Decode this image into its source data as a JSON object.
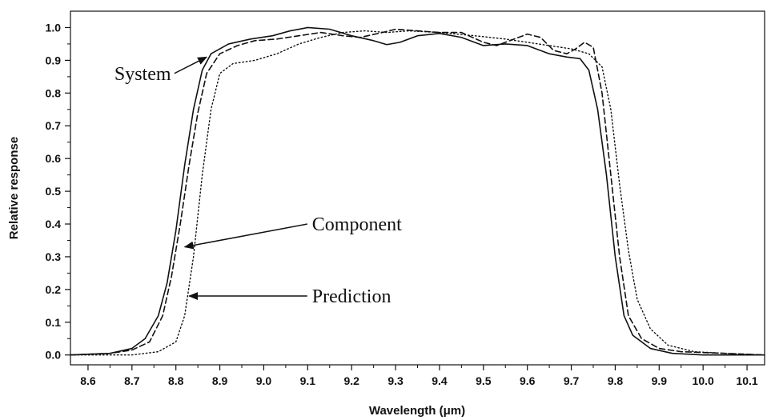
{
  "chart_data": {
    "type": "line",
    "title": "",
    "xlabel": "Wavelength (μm)",
    "ylabel": "Relative response",
    "xlim": [
      8.56,
      10.14
    ],
    "ylim": [
      -0.03,
      1.05
    ],
    "grid": false,
    "x_ticks": [
      8.6,
      8.7,
      8.8,
      8.9,
      9.0,
      9.1,
      9.2,
      9.3,
      9.4,
      9.5,
      9.6,
      9.7,
      9.8,
      9.9,
      10.0,
      10.1
    ],
    "x_tick_labels": [
      "8.6",
      "8.7",
      "8.8",
      "8.9",
      "9.0",
      "9.1",
      "9.2",
      "9.3",
      "9.4",
      "9.5",
      "9.6",
      "9.7",
      "9.8",
      "9.9",
      "10.0",
      "10.1"
    ],
    "y_ticks": [
      0.0,
      0.1,
      0.2,
      0.3,
      0.4,
      0.5,
      0.6,
      0.7,
      0.8,
      0.9,
      1.0
    ],
    "y_tick_labels": [
      "0.0",
      "0.1",
      "0.2",
      "0.3",
      "0.4",
      "0.5",
      "0.6",
      "0.7",
      "0.8",
      "0.9",
      "1.0"
    ],
    "series": [
      {
        "name": "System",
        "style": "solid",
        "color": "#111111",
        "points": [
          [
            8.56,
            0.0
          ],
          [
            8.65,
            0.005
          ],
          [
            8.7,
            0.02
          ],
          [
            8.73,
            0.05
          ],
          [
            8.76,
            0.12
          ],
          [
            8.78,
            0.22
          ],
          [
            8.8,
            0.38
          ],
          [
            8.82,
            0.58
          ],
          [
            8.84,
            0.75
          ],
          [
            8.86,
            0.87
          ],
          [
            8.88,
            0.92
          ],
          [
            8.92,
            0.95
          ],
          [
            8.97,
            0.965
          ],
          [
            9.02,
            0.975
          ],
          [
            9.06,
            0.99
          ],
          [
            9.1,
            1.0
          ],
          [
            9.15,
            0.995
          ],
          [
            9.2,
            0.975
          ],
          [
            9.25,
            0.96
          ],
          [
            9.28,
            0.948
          ],
          [
            9.31,
            0.955
          ],
          [
            9.35,
            0.975
          ],
          [
            9.4,
            0.982
          ],
          [
            9.45,
            0.97
          ],
          [
            9.5,
            0.945
          ],
          [
            9.55,
            0.95
          ],
          [
            9.6,
            0.945
          ],
          [
            9.65,
            0.92
          ],
          [
            9.69,
            0.91
          ],
          [
            9.72,
            0.905
          ],
          [
            9.74,
            0.87
          ],
          [
            9.76,
            0.75
          ],
          [
            9.78,
            0.55
          ],
          [
            9.8,
            0.3
          ],
          [
            9.82,
            0.12
          ],
          [
            9.84,
            0.06
          ],
          [
            9.88,
            0.02
          ],
          [
            9.93,
            0.005
          ],
          [
            10.0,
            0.0
          ],
          [
            10.14,
            0.0
          ]
        ]
      },
      {
        "name": "Component",
        "style": "dashed",
        "color": "#111111",
        "points": [
          [
            8.56,
            0.0
          ],
          [
            8.65,
            0.005
          ],
          [
            8.7,
            0.015
          ],
          [
            8.74,
            0.04
          ],
          [
            8.77,
            0.12
          ],
          [
            8.79,
            0.24
          ],
          [
            8.81,
            0.4
          ],
          [
            8.83,
            0.58
          ],
          [
            8.85,
            0.74
          ],
          [
            8.87,
            0.86
          ],
          [
            8.9,
            0.92
          ],
          [
            8.94,
            0.945
          ],
          [
            8.98,
            0.96
          ],
          [
            9.03,
            0.965
          ],
          [
            9.08,
            0.975
          ],
          [
            9.13,
            0.985
          ],
          [
            9.18,
            0.975
          ],
          [
            9.22,
            0.97
          ],
          [
            9.27,
            0.985
          ],
          [
            9.3,
            0.995
          ],
          [
            9.35,
            0.99
          ],
          [
            9.4,
            0.985
          ],
          [
            9.45,
            0.985
          ],
          [
            9.5,
            0.955
          ],
          [
            9.53,
            0.945
          ],
          [
            9.56,
            0.96
          ],
          [
            9.6,
            0.98
          ],
          [
            9.63,
            0.97
          ],
          [
            9.66,
            0.93
          ],
          [
            9.69,
            0.92
          ],
          [
            9.71,
            0.935
          ],
          [
            9.73,
            0.955
          ],
          [
            9.75,
            0.94
          ],
          [
            9.77,
            0.8
          ],
          [
            9.79,
            0.55
          ],
          [
            9.81,
            0.3
          ],
          [
            9.83,
            0.12
          ],
          [
            9.86,
            0.05
          ],
          [
            9.9,
            0.02
          ],
          [
            9.95,
            0.01
          ],
          [
            10.05,
            0.005
          ],
          [
            10.14,
            0.0
          ]
        ]
      },
      {
        "name": "Prediction",
        "style": "dotted",
        "color": "#111111",
        "points": [
          [
            8.56,
            0.0
          ],
          [
            8.7,
            0.0
          ],
          [
            8.76,
            0.01
          ],
          [
            8.8,
            0.04
          ],
          [
            8.82,
            0.12
          ],
          [
            8.84,
            0.3
          ],
          [
            8.86,
            0.55
          ],
          [
            8.88,
            0.75
          ],
          [
            8.9,
            0.86
          ],
          [
            8.93,
            0.89
          ],
          [
            8.98,
            0.9
          ],
          [
            9.03,
            0.92
          ],
          [
            9.08,
            0.95
          ],
          [
            9.13,
            0.97
          ],
          [
            9.18,
            0.985
          ],
          [
            9.23,
            0.99
          ],
          [
            9.28,
            0.985
          ],
          [
            9.33,
            0.99
          ],
          [
            9.4,
            0.985
          ],
          [
            9.48,
            0.975
          ],
          [
            9.55,
            0.965
          ],
          [
            9.6,
            0.955
          ],
          [
            9.65,
            0.945
          ],
          [
            9.7,
            0.935
          ],
          [
            9.74,
            0.92
          ],
          [
            9.77,
            0.88
          ],
          [
            9.79,
            0.75
          ],
          [
            9.81,
            0.52
          ],
          [
            9.83,
            0.32
          ],
          [
            9.85,
            0.17
          ],
          [
            9.88,
            0.08
          ],
          [
            9.92,
            0.03
          ],
          [
            9.98,
            0.01
          ],
          [
            10.05,
            0.005
          ],
          [
            10.14,
            0.0
          ]
        ]
      }
    ],
    "annotations": [
      {
        "text": "System",
        "x": 8.66,
        "y": 0.86,
        "arrow_to": [
          8.87,
          0.91
        ]
      },
      {
        "text": "Component",
        "x": 9.11,
        "y": 0.4,
        "arrow_to": [
          8.82,
          0.33
        ]
      },
      {
        "text": "Prediction",
        "x": 9.11,
        "y": 0.18,
        "arrow_to": [
          8.83,
          0.18
        ]
      }
    ]
  }
}
